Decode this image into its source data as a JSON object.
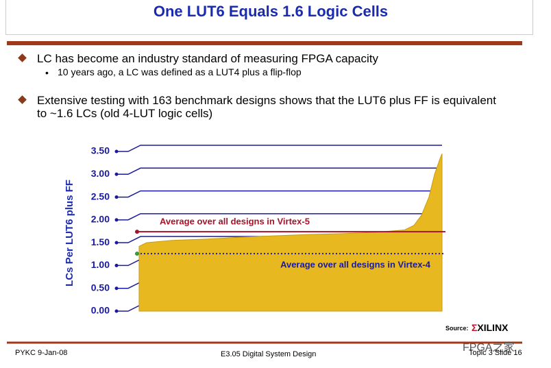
{
  "slide": {
    "title": "One LUT6 Equals 1.6 Logic Cells",
    "bullets": [
      {
        "text": "LC has become an industry standard of measuring FPGA capacity",
        "sub": [
          "10 years ago, a LC was defined as a LUT4 plus a flip-flop"
        ]
      },
      {
        "text": "Extensive testing with 163 benchmark designs shows that the LUT6 plus FF is equivalent to ~1.6 LCs (old 4-LUT logic cells)",
        "sub": []
      }
    ],
    "source": "Source:",
    "logo": "XILINX",
    "watermark": "FPGA之家",
    "footer": {
      "left": "PYKC 9-Jan-08",
      "center": "E3.05 Digital System Design",
      "right": "Topic 3 Slide 16"
    }
  },
  "chart_data": {
    "type": "area",
    "ylabel": "LCs Per LUT6 plus FF",
    "x": [
      1,
      5,
      18,
      37,
      55,
      73,
      92,
      110,
      128,
      143,
      148,
      152,
      156,
      159,
      162,
      163
    ],
    "values": [
      1.42,
      1.5,
      1.55,
      1.58,
      1.62,
      1.65,
      1.68,
      1.7,
      1.73,
      1.78,
      1.88,
      2.1,
      2.5,
      3.0,
      3.35,
      3.45
    ],
    "color": "#e8b820",
    "xlim": [
      1,
      163
    ],
    "ylim": [
      0,
      3.5
    ],
    "yticks": [
      {
        "value": 0,
        "label": "0.00"
      },
      {
        "value": 0.5,
        "label": "0.50"
      },
      {
        "value": 1,
        "label": "1.00"
      },
      {
        "value": 1.5,
        "label": "1.50"
      },
      {
        "value": 2,
        "label": "2.00"
      },
      {
        "value": 2.5,
        "label": "2.50"
      },
      {
        "value": 3,
        "label": "3.00"
      },
      {
        "value": 3.5,
        "label": "3.50"
      }
    ],
    "grid": true,
    "grid_color": "#1a1a9c",
    "reference_lines": [
      {
        "value": 1.74,
        "label": "Average over all designs in Virtex-5",
        "color": "#a0142c",
        "style": "solid"
      },
      {
        "value": 1.26,
        "label": "Average over all designs in Virtex-4",
        "color": "#1a1a9c",
        "style": "dotted"
      }
    ]
  }
}
